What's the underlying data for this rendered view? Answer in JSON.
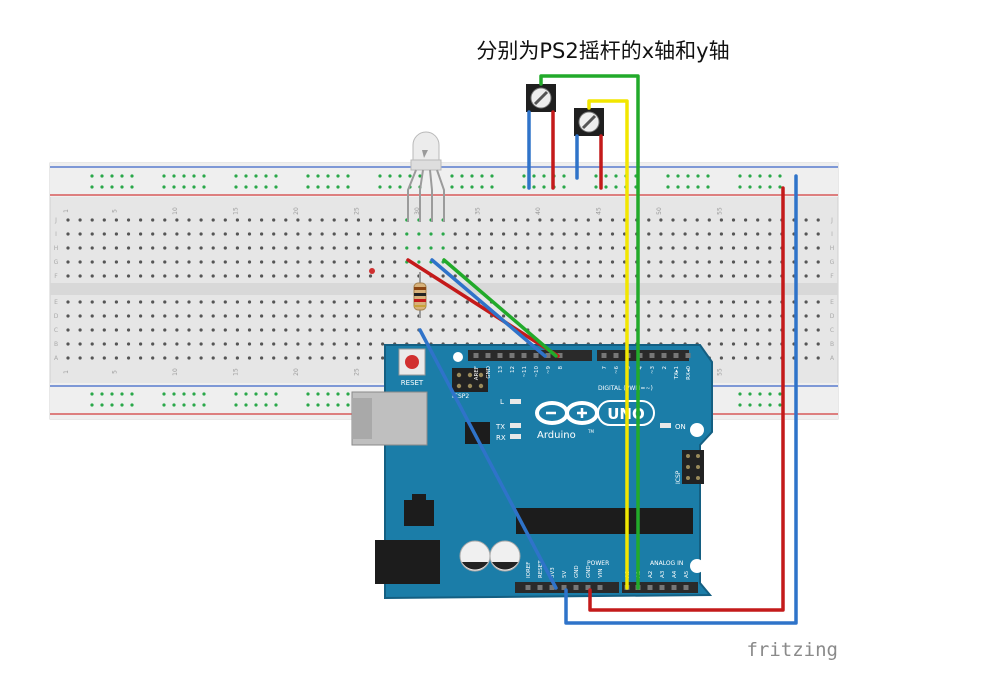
{
  "caption": "分别为PS2摇杆的x轴和y轴",
  "watermark": "fritzing",
  "breadboard": {
    "column_numbers": [
      "1",
      "5",
      "10",
      "15",
      "20",
      "25",
      "30",
      "35",
      "40",
      "45",
      "50",
      "55"
    ],
    "row_letters_top": [
      "J",
      "I",
      "H",
      "G",
      "F"
    ],
    "row_letters_bottom": [
      "E",
      "D",
      "C",
      "B",
      "A"
    ]
  },
  "arduino": {
    "logo_text": "Arduino",
    "model_text": "UNO",
    "trademark": "TM",
    "reset_label": "RESET",
    "icsp2_label": "ICSP2",
    "icsp_label": "ICSP",
    "on_label": "ON",
    "l_label": "L",
    "tx_label": "TX",
    "rx_label": "RX",
    "digital_label": "DIGITAL (PWM=~)",
    "power_label": "POWER",
    "analog_label": "ANALOG IN",
    "top_pins": [
      "AREF",
      "GND",
      "13",
      "12",
      "~11",
      "~10",
      "~9",
      "8",
      "7",
      "~6",
      "~5",
      "4",
      "~3",
      "2",
      "TX▸1",
      "RX◂0"
    ],
    "power_pins": [
      "IOREF",
      "RESET",
      "3V3",
      "5V",
      "GND",
      "GND",
      "VIN"
    ],
    "analog_pins": [
      "A0",
      "A1",
      "A2",
      "A3",
      "A4",
      "A5"
    ]
  },
  "colors": {
    "board": "#1b7da8",
    "board_edge": "#145f82",
    "wire_red": "#c41a1a",
    "wire_blue": "#2f73c9",
    "wire_green": "#22aa2a",
    "wire_yellow": "#f2e600",
    "breadboard": "#e7e7e7",
    "hole_green": "#2aa84a"
  }
}
